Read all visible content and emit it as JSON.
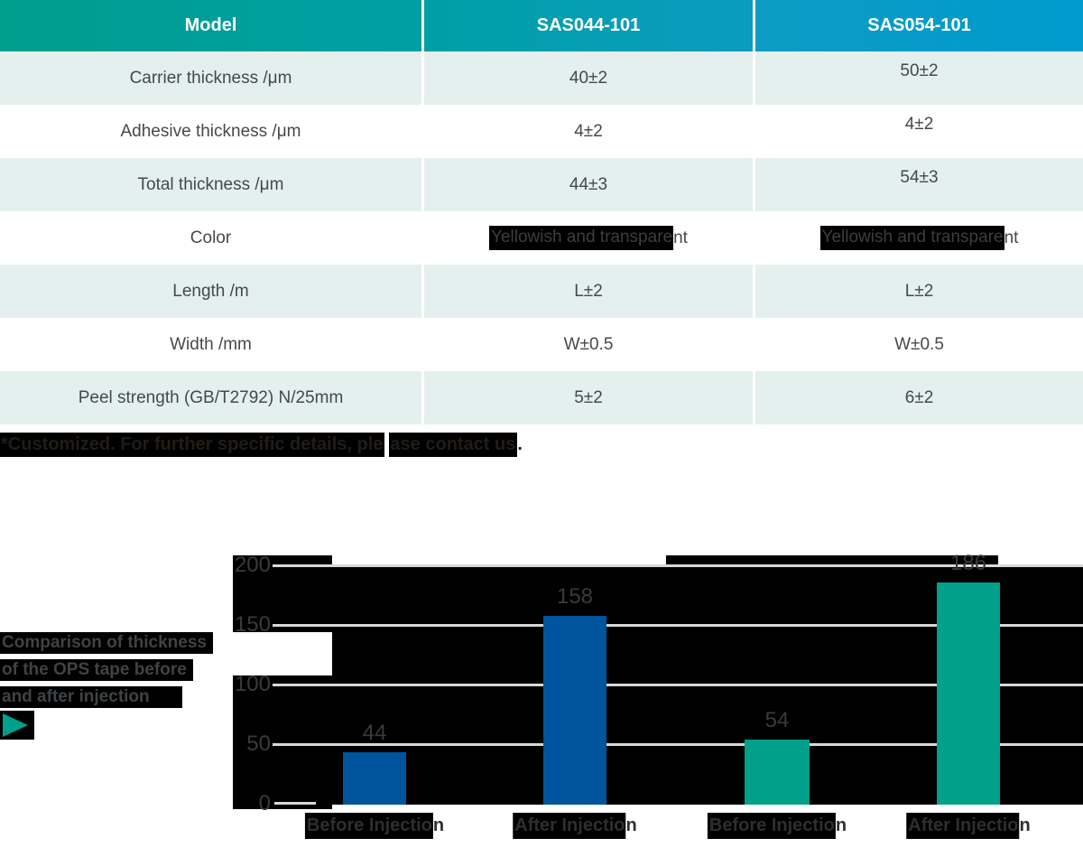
{
  "table": {
    "header": {
      "col1": "Model",
      "col2": "SAS044-101",
      "col3": "SAS054-101"
    },
    "rows": [
      {
        "label": "Carrier thickness /μm",
        "v1": "40±2",
        "v2": "50±2"
      },
      {
        "label": "Adhesive thickness /μm",
        "v1": "4±2",
        "v2": "4±2"
      },
      {
        "label": "Total thickness /μm",
        "v1": "44±3",
        "v2": "54±3"
      },
      {
        "label": "Color",
        "v1_main": "Yellowish and transpare",
        "v1_tail": "nt",
        "v2_main": "Yellowish and transpare",
        "v2_tail": "nt"
      },
      {
        "label": "Length /m",
        "v1": "L±2",
        "v2": "L±2"
      },
      {
        "label": "Width /mm",
        "v1": "W±0.5",
        "v2": "W±0.5"
      },
      {
        "label": "Peel strength (GB/T2792) N/25mm",
        "v1": "5±2",
        "v2": "6±2"
      }
    ]
  },
  "footnote": {
    "hl1": "*Customized. For further specific details, ple",
    "hl2": "ase contact us",
    "tail": "."
  },
  "chart": {
    "title_lines": [
      "Comparison of thickness",
      "of the OPS tape before",
      "and after injection"
    ],
    "play_icon": "play-triangle",
    "colors": {
      "blue": "#00549e",
      "teal": "#00a08b",
      "grid": "#d8d8d8",
      "plot_bg": "#000000"
    }
  },
  "chart_data": {
    "type": "bar",
    "title": "Comparison of thickness of the OPS tape before and after injection",
    "categories": [
      "Before Injection",
      "After Injection",
      "Before Injection",
      "After Injection"
    ],
    "values": [
      44,
      158,
      54,
      186
    ],
    "bar_colors": [
      "#00549e",
      "#00549e",
      "#00a08b",
      "#00a08b"
    ],
    "series_hint": [
      {
        "name": "SAS044-101",
        "values": [
          44,
          158
        ]
      },
      {
        "name": "SAS054-101",
        "values": [
          54,
          186
        ]
      }
    ],
    "ylim": [
      0,
      200
    ],
    "y_ticks": [
      200,
      150,
      100,
      50,
      0
    ],
    "grid": true,
    "legend": "none"
  }
}
